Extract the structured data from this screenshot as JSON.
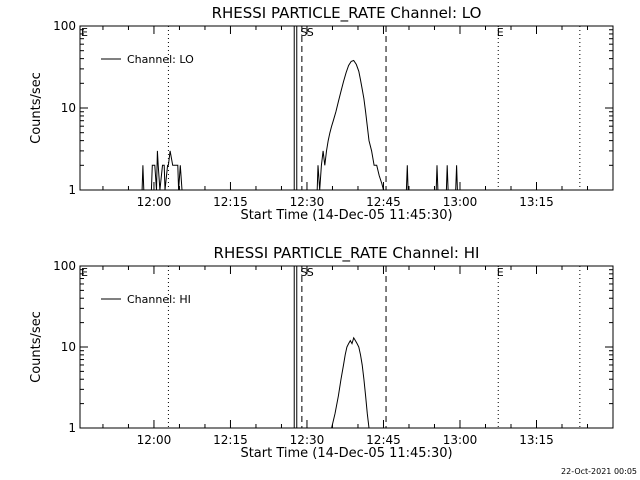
{
  "footer": {
    "timestamp": "22-Oct-2021 00:05"
  },
  "chart_data": [
    {
      "type": "line",
      "title": "RHESSI PARTICLE_RATE Channel: LO",
      "xlabel": "Start Time (14-Dec-05 11:45:30)",
      "ylabel": "Counts/sec",
      "y_scale": "log",
      "ylim": [
        1,
        100
      ],
      "xlim": [
        "11:45:30",
        "13:30:00"
      ],
      "x_ticks": [
        "12:00",
        "12:15",
        "12:30",
        "12:45",
        "13:00",
        "13:15"
      ],
      "y_ticks": [
        "1",
        "10",
        "100"
      ],
      "legend": {
        "position": "top-left",
        "entries": [
          "Channel: LO"
        ]
      },
      "grid": false,
      "series": [
        {
          "name": "Channel: LO",
          "x": [
            "11:57:40",
            "11:57:50",
            "11:58:00",
            "11:59:30",
            "11:59:40",
            "12:00:10",
            "12:00:30",
            "12:00:40",
            "12:00:50",
            "12:01:10",
            "12:01:40",
            "12:02:00",
            "12:02:10",
            "12:02:40",
            "12:02:50",
            "12:03:10",
            "12:03:40",
            "12:03:50",
            "12:04:10",
            "12:04:40",
            "12:04:50",
            "12:05:10",
            "12:05:30",
            "12:32:00",
            "12:32:10",
            "12:32:30",
            "12:32:50",
            "12:33:10",
            "12:33:30",
            "12:33:50",
            "12:34:10",
            "12:34:30",
            "12:34:50",
            "12:35:10",
            "12:35:40",
            "12:36:10",
            "12:36:40",
            "12:37:10",
            "12:37:40",
            "12:38:10",
            "12:38:40",
            "12:39:10",
            "12:39:40",
            "12:40:10",
            "12:40:30",
            "12:40:50",
            "12:41:10",
            "12:41:30",
            "12:41:50",
            "12:42:10",
            "12:42:40",
            "12:43:10",
            "12:43:40",
            "12:44:10",
            "12:44:40",
            "12:45:00",
            "12:45:30",
            "12:49:30",
            "12:49:40",
            "12:49:50",
            "12:55:20",
            "12:55:30",
            "12:55:40",
            "12:57:20",
            "12:57:30",
            "12:57:40",
            "12:59:10",
            "12:59:20",
            "12:59:30"
          ],
          "values": [
            1,
            2,
            1,
            1,
            2,
            2,
            1,
            3,
            2,
            1,
            2,
            2,
            1,
            2,
            2,
            3,
            2,
            2,
            2,
            2,
            1,
            2,
            1,
            1,
            2,
            1,
            2,
            3,
            2,
            3,
            4,
            5,
            6,
            7,
            9,
            12,
            16,
            21,
            27,
            33,
            37,
            38,
            34,
            28,
            22,
            17,
            13,
            9,
            6,
            4,
            3,
            2,
            2,
            1.5,
            1.2,
            1,
            1,
            1,
            2,
            1,
            1,
            2,
            1,
            1,
            2,
            1,
            1,
            2,
            1
          ]
        }
      ],
      "markers": {
        "solid_lines": [
          "12:27:30",
          "12:28:00"
        ],
        "dotted_lines": [
          "12:02:50",
          "13:07:30",
          "13:23:30"
        ],
        "dashed_lines": [
          "12:29:00",
          "12:45:30"
        ],
        "labels": [
          {
            "text": "E",
            "x": "11:45:30"
          },
          {
            "text": "S",
            "x": "12:28:30"
          },
          {
            "text": "S",
            "x": "12:29:45"
          },
          {
            "text": "E",
            "x": "13:07:00"
          }
        ]
      }
    },
    {
      "type": "line",
      "title": "RHESSI PARTICLE_RATE Channel: HI",
      "xlabel": "Start Time (14-Dec-05 11:45:30)",
      "ylabel": "Counts/sec",
      "y_scale": "log",
      "ylim": [
        1,
        100
      ],
      "xlim": [
        "11:45:30",
        "13:30:00"
      ],
      "x_ticks": [
        "12:00",
        "12:15",
        "12:30",
        "12:45",
        "13:00",
        "13:15"
      ],
      "y_ticks": [
        "1",
        "10",
        "100"
      ],
      "legend": {
        "position": "top-left",
        "entries": [
          "Channel: HI"
        ]
      },
      "grid": false,
      "series": [
        {
          "name": "Channel: HI",
          "x": [
            "12:34:50",
            "12:35:30",
            "12:36:10",
            "12:36:40",
            "12:37:10",
            "12:37:30",
            "12:37:50",
            "12:38:10",
            "12:38:30",
            "12:38:50",
            "12:39:10",
            "12:39:30",
            "12:39:50",
            "12:40:10",
            "12:40:30",
            "12:40:50",
            "12:41:10",
            "12:41:30",
            "12:41:50",
            "12:42:10"
          ],
          "values": [
            1,
            1.5,
            2.5,
            4,
            6,
            8,
            10,
            11,
            12,
            11,
            13,
            12,
            11,
            10,
            8,
            6,
            4,
            2.5,
            1.5,
            1
          ]
        }
      ],
      "markers": {
        "solid_lines": [
          "12:27:30",
          "12:28:00"
        ],
        "dotted_lines": [
          "12:02:50",
          "13:07:30",
          "13:23:30"
        ],
        "dashed_lines": [
          "12:29:00",
          "12:45:30"
        ],
        "labels": [
          {
            "text": "E",
            "x": "11:45:30"
          },
          {
            "text": "S",
            "x": "12:28:30"
          },
          {
            "text": "S",
            "x": "12:29:45"
          },
          {
            "text": "E",
            "x": "13:07:00"
          }
        ]
      }
    }
  ]
}
